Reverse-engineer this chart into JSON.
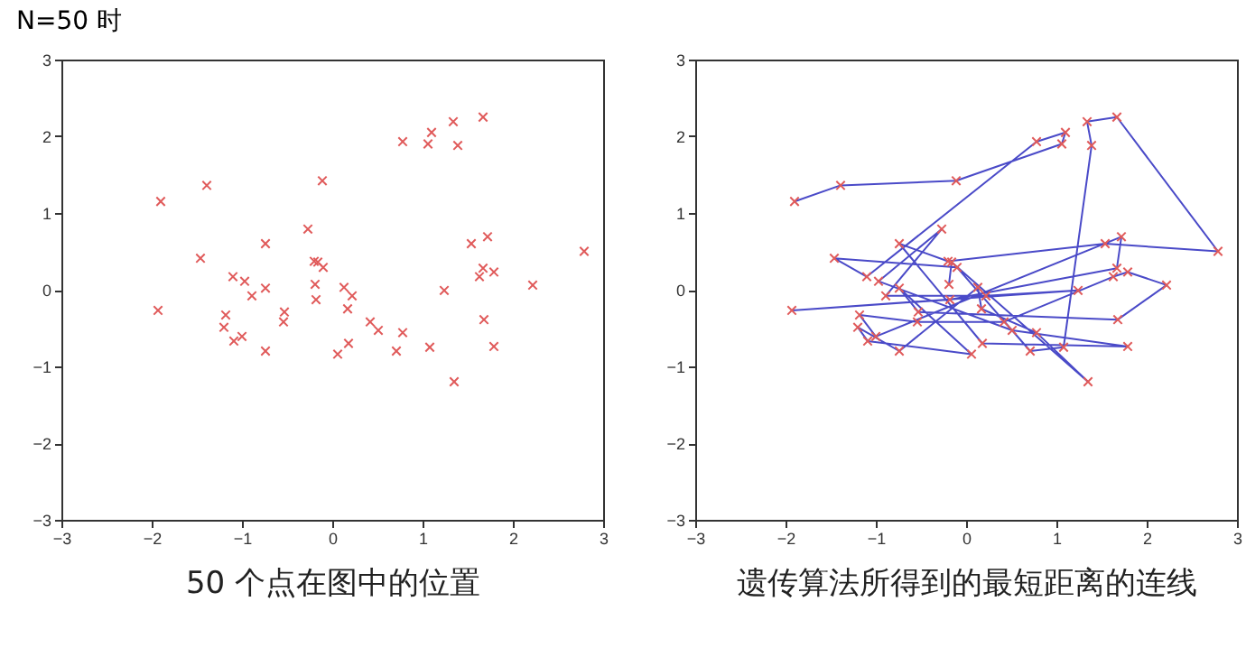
{
  "chart_data": [
    {
      "type": "scatter",
      "title": "N=50 时",
      "xlabel": "50 个点在图中的位置",
      "marker": "cross",
      "grid": false,
      "xlim": [
        -3,
        3
      ],
      "ylim": [
        -3,
        3
      ],
      "xticks": [
        -3,
        -2,
        -1,
        0,
        1,
        2,
        3
      ],
      "yticks": [
        -3,
        -2,
        -1,
        0,
        1,
        2,
        3
      ],
      "series": [
        {
          "color": "#e05a5a",
          "x": [
            -1.9,
            -1.39,
            -0.11,
            0.78,
            1.06,
            1.1,
            1.34,
            1.67,
            1.39,
            -0.27,
            -1.46,
            -0.74,
            1.54,
            1.72,
            2.79,
            -0.2,
            -0.1,
            -0.16,
            -1.1,
            -0.97,
            -0.89,
            -0.74,
            0.13,
            0.22,
            -0.18,
            1.24,
            1.67,
            1.63,
            1.79,
            2.22,
            -1.93,
            -1.18,
            -0.53,
            -0.54,
            -1.2,
            -1.09,
            -1.0,
            -0.74,
            0.17,
            0.42,
            0.51,
            0.78,
            0.18,
            0.06,
            0.71,
            1.08,
            1.35,
            1.68,
            1.79,
            -0.19
          ],
          "values": [
            1.15,
            1.36,
            1.42,
            1.93,
            1.9,
            2.05,
            2.19,
            2.25,
            1.88,
            0.79,
            0.41,
            0.6,
            0.6,
            0.69,
            0.5,
            0.37,
            0.29,
            0.36,
            0.17,
            0.11,
            -0.08,
            0.02,
            0.03,
            -0.08,
            -0.13,
            -0.01,
            0.28,
            0.17,
            0.23,
            0.06,
            -0.27,
            -0.33,
            -0.29,
            -0.42,
            -0.49,
            -0.67,
            -0.61,
            -0.8,
            -0.25,
            -0.42,
            -0.53,
            -0.56,
            -0.7,
            -0.84,
            -0.8,
            -0.75,
            -1.2,
            -0.39,
            -0.74,
            0.07
          ]
        }
      ]
    },
    {
      "type": "line",
      "xlabel": "遗传算法所得到的最短距离的连线",
      "grid": false,
      "xlim": [
        -3,
        3
      ],
      "ylim": [
        -3,
        3
      ],
      "xticks": [
        -3,
        -2,
        -1,
        0,
        1,
        2,
        3
      ],
      "yticks": [
        -3,
        -2,
        -1,
        0,
        1,
        2,
        3
      ],
      "series": [
        {
          "type": "line",
          "marker": "none",
          "color": "#4a4ac8",
          "x": [
            -1.9,
            -1.39,
            -0.11,
            1.06,
            1.1,
            0.78,
            -1.1,
            -1.46,
            -0.1,
            0.71,
            1.08,
            1.39,
            1.34,
            1.67,
            2.79,
            1.54,
            -0.2,
            -0.74,
            0.18,
            1.79,
            0.51,
            -0.97,
            -0.27,
            -0.89,
            0.22,
            1.24,
            -1.93,
            -0.18,
            1.67,
            1.72,
            -1.0,
            -1.18,
            -0.54,
            0.42,
            1.63,
            1.79,
            2.22,
            1.68,
            -0.53,
            -0.74,
            0.06,
            -1.09,
            -1.2,
            -0.74,
            0.13,
            0.17,
            0.78,
            1.35,
            -0.16,
            -0.19
          ],
          "values": [
            1.15,
            1.36,
            1.42,
            1.9,
            2.05,
            1.93,
            0.17,
            0.41,
            0.29,
            -0.8,
            -0.75,
            1.88,
            2.19,
            2.25,
            0.5,
            0.6,
            0.37,
            0.6,
            -0.7,
            -0.74,
            -0.53,
            0.11,
            0.79,
            -0.08,
            -0.08,
            -0.01,
            -0.27,
            -0.13,
            0.28,
            0.69,
            -0.61,
            -0.33,
            -0.42,
            -0.42,
            0.17,
            0.23,
            0.06,
            -0.39,
            -0.29,
            0.02,
            -0.84,
            -0.67,
            -0.49,
            -0.8,
            0.03,
            -0.25,
            -0.56,
            -1.2,
            0.36,
            0.07
          ]
        },
        {
          "type": "scatter",
          "marker": "cross",
          "color": "#e05a5a",
          "x": [
            -1.9,
            -1.39,
            -0.11,
            0.78,
            1.06,
            1.1,
            1.34,
            1.67,
            1.39,
            -0.27,
            -1.46,
            -0.74,
            1.54,
            1.72,
            2.79,
            -0.2,
            -0.1,
            -0.16,
            -1.1,
            -0.97,
            -0.89,
            -0.74,
            0.13,
            0.22,
            -0.18,
            1.24,
            1.67,
            1.63,
            1.79,
            2.22,
            -1.93,
            -1.18,
            -0.53,
            -0.54,
            -1.2,
            -1.09,
            -1.0,
            -0.74,
            0.17,
            0.42,
            0.51,
            0.78,
            0.18,
            0.06,
            0.71,
            1.08,
            1.35,
            1.68,
            1.79,
            -0.19
          ],
          "values": [
            1.15,
            1.36,
            1.42,
            1.93,
            1.9,
            2.05,
            2.19,
            2.25,
            1.88,
            0.79,
            0.41,
            0.6,
            0.6,
            0.69,
            0.5,
            0.37,
            0.29,
            0.36,
            0.17,
            0.11,
            -0.08,
            0.02,
            0.03,
            -0.08,
            -0.13,
            -0.01,
            0.28,
            0.17,
            0.23,
            0.06,
            -0.27,
            -0.33,
            -0.29,
            -0.42,
            -0.49,
            -0.67,
            -0.61,
            -0.8,
            -0.25,
            -0.42,
            -0.53,
            -0.56,
            -0.7,
            -0.84,
            -0.8,
            -0.75,
            -1.2,
            -0.39,
            -0.74,
            0.07
          ]
        }
      ]
    }
  ]
}
